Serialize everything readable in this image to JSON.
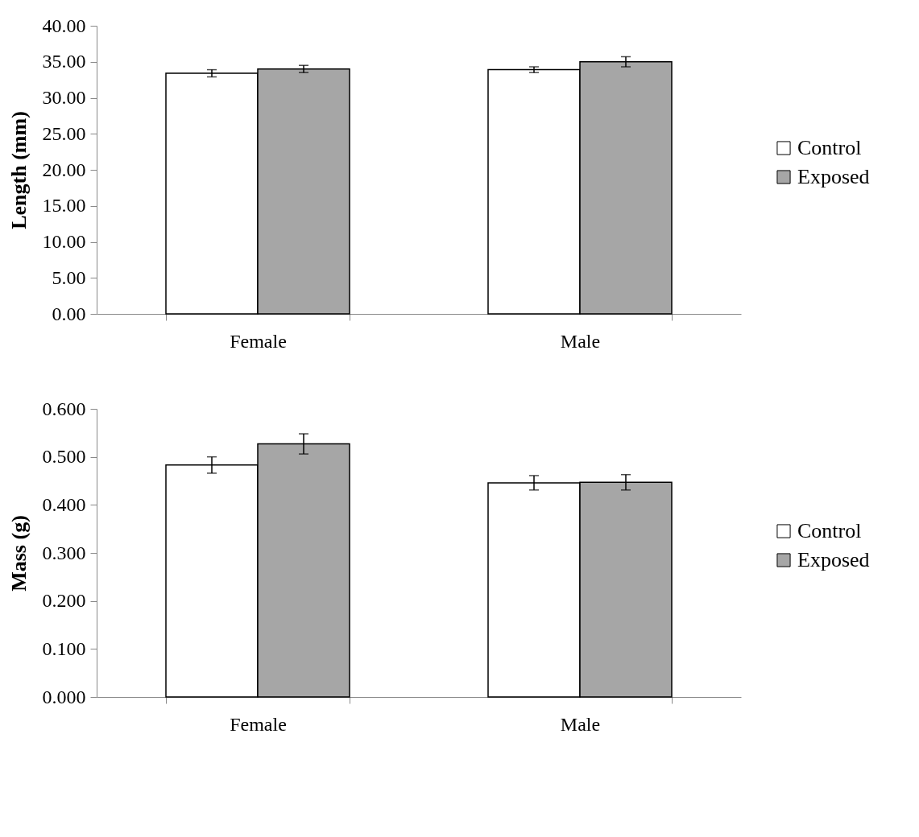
{
  "chart_data": [
    {
      "type": "bar",
      "categories": [
        "Female",
        "Male"
      ],
      "ylabel": "Length (mm)",
      "ylim": [
        0,
        40
      ],
      "yticks": [
        {
          "value": 0,
          "label": "0.00"
        },
        {
          "value": 5,
          "label": "5.00"
        },
        {
          "value": 10,
          "label": "10.00"
        },
        {
          "value": 15,
          "label": "15.00"
        },
        {
          "value": 20,
          "label": "20.00"
        },
        {
          "value": 25,
          "label": "25.00"
        },
        {
          "value": 30,
          "label": "30.00"
        },
        {
          "value": 35,
          "label": "35.00"
        },
        {
          "value": 40,
          "label": "40.00"
        }
      ],
      "series": [
        {
          "name": "Control",
          "color": "#ffffff",
          "values": [
            33.4,
            33.9
          ],
          "errors": [
            0.5,
            0.4
          ]
        },
        {
          "name": "Exposed",
          "color": "#a6a6a6",
          "values": [
            34.0,
            35.0
          ],
          "errors": [
            0.5,
            0.7
          ]
        }
      ],
      "legend": "right",
      "grid": false
    },
    {
      "type": "bar",
      "categories": [
        "Female",
        "Male"
      ],
      "ylabel": "Mass (g)",
      "ylim": [
        0,
        0.6
      ],
      "yticks": [
        {
          "value": 0,
          "label": "0.000"
        },
        {
          "value": 0.1,
          "label": "0.100"
        },
        {
          "value": 0.2,
          "label": "0.200"
        },
        {
          "value": 0.3,
          "label": "0.300"
        },
        {
          "value": 0.4,
          "label": "0.400"
        },
        {
          "value": 0.5,
          "label": "0.500"
        },
        {
          "value": 0.6,
          "label": "0.600"
        }
      ],
      "series": [
        {
          "name": "Control",
          "color": "#ffffff",
          "values": [
            0.483,
            0.446
          ],
          "errors": [
            0.017,
            0.015
          ]
        },
        {
          "name": "Exposed",
          "color": "#a6a6a6",
          "values": [
            0.527,
            0.447
          ],
          "errors": [
            0.021,
            0.016
          ]
        }
      ],
      "legend": "right",
      "grid": false
    }
  ]
}
